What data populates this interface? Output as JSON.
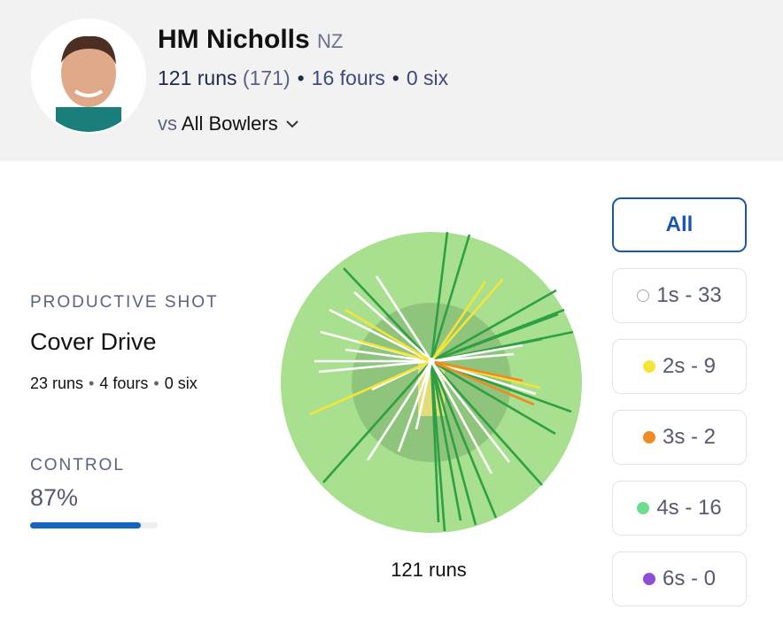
{
  "header": {
    "name": "HM Nicholls",
    "country": "NZ",
    "runs": "121 runs",
    "balls": "(171)",
    "fours": "16 fours",
    "sixes": "0 six",
    "vs": "vs",
    "opponent": "All Bowlers"
  },
  "productive_shot": {
    "label": "PRODUCTIVE SHOT",
    "shot": "Cover Drive",
    "runs": "23 runs",
    "fours": "4 fours",
    "sixes": "0 six"
  },
  "control": {
    "label": "CONTROL",
    "value": 87,
    "value_label": "87%",
    "color": "#1565c0"
  },
  "wagon_wheel": {
    "total": "121 runs"
  },
  "filters": [
    {
      "label": "All"
    },
    {
      "label": "1s - 33",
      "color": "#ffffff"
    },
    {
      "label": "2s - 9",
      "color": "#f5e43a"
    },
    {
      "label": "3s - 2",
      "color": "#f08a24"
    },
    {
      "label": "4s - 16",
      "color": "#6fdc8c"
    },
    {
      "label": "6s - 0",
      "color": "#8e4fd6"
    }
  ]
}
